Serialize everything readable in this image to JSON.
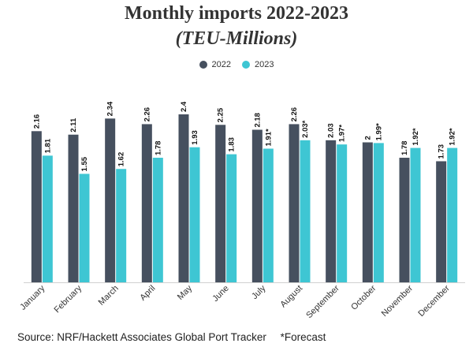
{
  "chart_data": {
    "type": "bar",
    "title": "Monthly imports 2022-2023",
    "subtitle": "(TEU-Millions)",
    "categories": [
      "January",
      "February",
      "March",
      "April",
      "May",
      "June",
      "July",
      "August",
      "September",
      "October",
      "November",
      "December"
    ],
    "series": [
      {
        "name": "2022",
        "color": "#46505f",
        "values": [
          2.16,
          2.11,
          2.34,
          2.26,
          2.4,
          2.25,
          2.18,
          2.26,
          2.03,
          2,
          1.78,
          1.73
        ],
        "labels": [
          "2.16",
          "2.11",
          "2.34",
          "2.26",
          "2.4",
          "2.25",
          "2.18",
          "2.26",
          "2.03",
          "2",
          "1.78",
          "1.73"
        ]
      },
      {
        "name": "2023",
        "color": "#3ec6d3",
        "values": [
          1.81,
          1.55,
          1.62,
          1.78,
          1.93,
          1.83,
          1.91,
          2.03,
          1.97,
          1.99,
          1.92,
          1.92
        ],
        "labels": [
          "1.81",
          "1.55",
          "1.62",
          "1.78",
          "1.93",
          "1.83",
          "1.91*",
          "2.03*",
          "1.97*",
          "1.99*",
          "1.92*",
          "1.92*"
        ]
      }
    ],
    "ylim": [
      0,
      2.4
    ],
    "grid": false,
    "legend_position": "top-center"
  },
  "footer": {
    "source": "Source: NRF/Hackett Associates Global Port Tracker",
    "note": "*Forecast"
  }
}
